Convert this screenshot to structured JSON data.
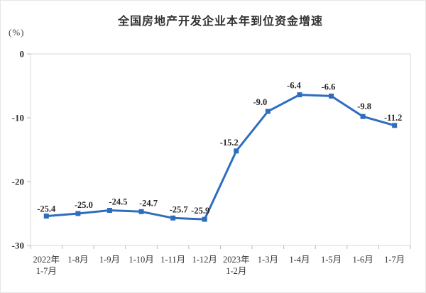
{
  "chart_data": {
    "type": "line",
    "title": "全国房地产开发企业本年到位资金增速",
    "unit": "(%)",
    "categories": [
      "2022年\n1-7月",
      "1-8月",
      "1-9月",
      "1-10月",
      "1-11月",
      "1-12月",
      "2023年\n1-2月",
      "1-3月",
      "1-4月",
      "1-5月",
      "1-6月",
      "1-7月"
    ],
    "values": [
      -25.4,
      -25.0,
      -24.5,
      -24.7,
      -25.7,
      -25.9,
      -15.2,
      -9.0,
      -6.4,
      -6.6,
      -9.8,
      -11.2
    ],
    "labels": [
      "-25.4",
      "-25.0",
      "-24.5",
      "-24.7",
      "-25.7",
      "-25.9",
      "-15.2",
      "-9.0",
      "-6.4",
      "-6.6",
      "-9.8",
      "-11.2"
    ],
    "y_ticks": [
      {
        "value": 0,
        "label": "0"
      },
      {
        "value": -10,
        "label": "-10"
      },
      {
        "value": -20,
        "label": "-20"
      },
      {
        "value": -30,
        "label": "-30"
      }
    ],
    "ylim": [
      -30,
      0
    ],
    "grid": false,
    "legend": false,
    "marker": "square",
    "colors": {
      "line": "#2E6DBE",
      "frame": "#D9D9D9",
      "tick": "#B9B9B9"
    }
  }
}
